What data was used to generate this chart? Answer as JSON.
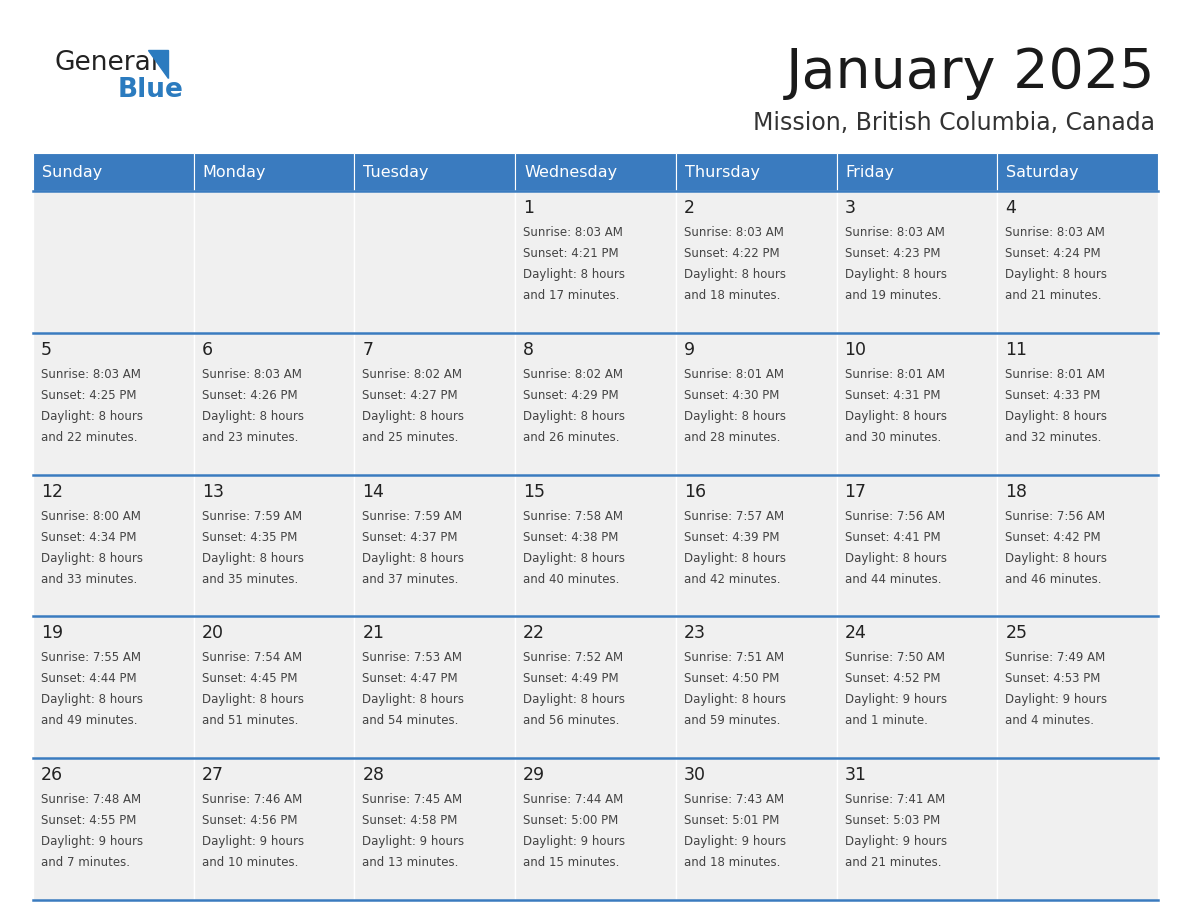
{
  "title": "January 2025",
  "subtitle": "Mission, British Columbia, Canada",
  "header_color": "#3a7bbf",
  "header_text_color": "#ffffff",
  "cell_bg_color": "#f0f0f0",
  "cell_empty_bg": "#f0f0f0",
  "cell_border_color": "#ffffff",
  "divider_color": "#3a7bbf",
  "bottom_bg": "#ffffff",
  "days_of_week": [
    "Sunday",
    "Monday",
    "Tuesday",
    "Wednesday",
    "Thursday",
    "Friday",
    "Saturday"
  ],
  "weeks": [
    [
      {
        "day": "",
        "sunrise": "",
        "sunset": "",
        "daylight": ""
      },
      {
        "day": "",
        "sunrise": "",
        "sunset": "",
        "daylight": ""
      },
      {
        "day": "",
        "sunrise": "",
        "sunset": "",
        "daylight": ""
      },
      {
        "day": "1",
        "sunrise": "8:03 AM",
        "sunset": "4:21 PM",
        "daylight": "8 hours and 17 minutes."
      },
      {
        "day": "2",
        "sunrise": "8:03 AM",
        "sunset": "4:22 PM",
        "daylight": "8 hours and 18 minutes."
      },
      {
        "day": "3",
        "sunrise": "8:03 AM",
        "sunset": "4:23 PM",
        "daylight": "8 hours and 19 minutes."
      },
      {
        "day": "4",
        "sunrise": "8:03 AM",
        "sunset": "4:24 PM",
        "daylight": "8 hours and 21 minutes."
      }
    ],
    [
      {
        "day": "5",
        "sunrise": "8:03 AM",
        "sunset": "4:25 PM",
        "daylight": "8 hours and 22 minutes."
      },
      {
        "day": "6",
        "sunrise": "8:03 AM",
        "sunset": "4:26 PM",
        "daylight": "8 hours and 23 minutes."
      },
      {
        "day": "7",
        "sunrise": "8:02 AM",
        "sunset": "4:27 PM",
        "daylight": "8 hours and 25 minutes."
      },
      {
        "day": "8",
        "sunrise": "8:02 AM",
        "sunset": "4:29 PM",
        "daylight": "8 hours and 26 minutes."
      },
      {
        "day": "9",
        "sunrise": "8:01 AM",
        "sunset": "4:30 PM",
        "daylight": "8 hours and 28 minutes."
      },
      {
        "day": "10",
        "sunrise": "8:01 AM",
        "sunset": "4:31 PM",
        "daylight": "8 hours and 30 minutes."
      },
      {
        "day": "11",
        "sunrise": "8:01 AM",
        "sunset": "4:33 PM",
        "daylight": "8 hours and 32 minutes."
      }
    ],
    [
      {
        "day": "12",
        "sunrise": "8:00 AM",
        "sunset": "4:34 PM",
        "daylight": "8 hours and 33 minutes."
      },
      {
        "day": "13",
        "sunrise": "7:59 AM",
        "sunset": "4:35 PM",
        "daylight": "8 hours and 35 minutes."
      },
      {
        "day": "14",
        "sunrise": "7:59 AM",
        "sunset": "4:37 PM",
        "daylight": "8 hours and 37 minutes."
      },
      {
        "day": "15",
        "sunrise": "7:58 AM",
        "sunset": "4:38 PM",
        "daylight": "8 hours and 40 minutes."
      },
      {
        "day": "16",
        "sunrise": "7:57 AM",
        "sunset": "4:39 PM",
        "daylight": "8 hours and 42 minutes."
      },
      {
        "day": "17",
        "sunrise": "7:56 AM",
        "sunset": "4:41 PM",
        "daylight": "8 hours and 44 minutes."
      },
      {
        "day": "18",
        "sunrise": "7:56 AM",
        "sunset": "4:42 PM",
        "daylight": "8 hours and 46 minutes."
      }
    ],
    [
      {
        "day": "19",
        "sunrise": "7:55 AM",
        "sunset": "4:44 PM",
        "daylight": "8 hours and 49 minutes."
      },
      {
        "day": "20",
        "sunrise": "7:54 AM",
        "sunset": "4:45 PM",
        "daylight": "8 hours and 51 minutes."
      },
      {
        "day": "21",
        "sunrise": "7:53 AM",
        "sunset": "4:47 PM",
        "daylight": "8 hours and 54 minutes."
      },
      {
        "day": "22",
        "sunrise": "7:52 AM",
        "sunset": "4:49 PM",
        "daylight": "8 hours and 56 minutes."
      },
      {
        "day": "23",
        "sunrise": "7:51 AM",
        "sunset": "4:50 PM",
        "daylight": "8 hours and 59 minutes."
      },
      {
        "day": "24",
        "sunrise": "7:50 AM",
        "sunset": "4:52 PM",
        "daylight": "9 hours and 1 minute."
      },
      {
        "day": "25",
        "sunrise": "7:49 AM",
        "sunset": "4:53 PM",
        "daylight": "9 hours and 4 minutes."
      }
    ],
    [
      {
        "day": "26",
        "sunrise": "7:48 AM",
        "sunset": "4:55 PM",
        "daylight": "9 hours and 7 minutes."
      },
      {
        "day": "27",
        "sunrise": "7:46 AM",
        "sunset": "4:56 PM",
        "daylight": "9 hours and 10 minutes."
      },
      {
        "day": "28",
        "sunrise": "7:45 AM",
        "sunset": "4:58 PM",
        "daylight": "9 hours and 13 minutes."
      },
      {
        "day": "29",
        "sunrise": "7:44 AM",
        "sunset": "5:00 PM",
        "daylight": "9 hours and 15 minutes."
      },
      {
        "day": "30",
        "sunrise": "7:43 AM",
        "sunset": "5:01 PM",
        "daylight": "9 hours and 18 minutes."
      },
      {
        "day": "31",
        "sunrise": "7:41 AM",
        "sunset": "5:03 PM",
        "daylight": "9 hours and 21 minutes."
      },
      {
        "day": "",
        "sunrise": "",
        "sunset": "",
        "daylight": ""
      }
    ]
  ]
}
